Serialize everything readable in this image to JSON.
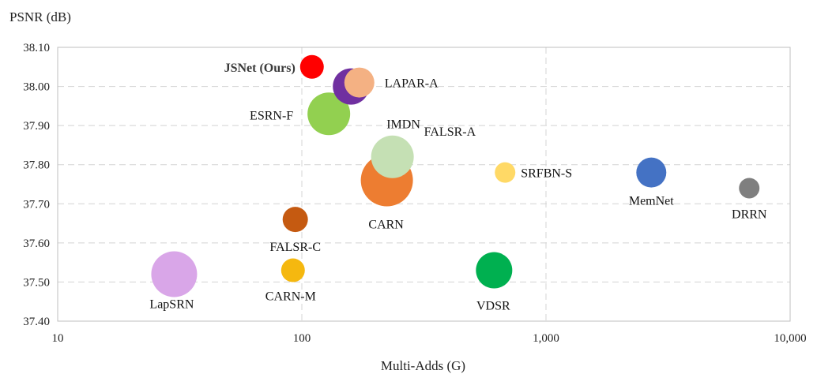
{
  "chart_data": {
    "type": "scatter",
    "title": "",
    "xlabel": "Multi-Adds (G)",
    "ylabel": "PSNR (dB)",
    "x_scale": "log",
    "xlim": [
      10,
      10000
    ],
    "ylim": [
      37.4,
      38.1
    ],
    "x_ticks": [
      10,
      100,
      1000,
      10000
    ],
    "x_tick_labels": [
      "10",
      "100",
      "1,000",
      "10,000"
    ],
    "y_ticks": [
      37.4,
      37.5,
      37.6,
      37.7,
      37.8,
      37.9,
      38.0,
      38.1
    ],
    "y_tick_labels": [
      "37.40",
      "37.50",
      "37.60",
      "37.70",
      "37.80",
      "37.90",
      "38.00",
      "38.10"
    ],
    "grid": true,
    "points": [
      {
        "label": "LapSRN",
        "x": 30,
        "y": 37.52,
        "size": 29,
        "color": "#d9a6e8",
        "bold": false
      },
      {
        "label": "CARN-M",
        "x": 92,
        "y": 37.53,
        "size": 15,
        "color": "#f5b80f",
        "bold": false
      },
      {
        "label": "FALSR-C",
        "x": 94,
        "y": 37.66,
        "size": 16,
        "color": "#c55a11",
        "bold": false
      },
      {
        "label": "JSNet (Ours)",
        "x": 110,
        "y": 38.05,
        "size": 15,
        "color": "#ff0000",
        "bold": true
      },
      {
        "label": "ESRN-F",
        "x": 129,
        "y": 37.93,
        "size": 27,
        "color": "#92d050",
        "bold": false
      },
      {
        "label": "IMDN",
        "x": 159,
        "y": 38.0,
        "size": 23,
        "color": "#7030a0",
        "bold": false
      },
      {
        "label": "LAPAR-A",
        "x": 172,
        "y": 38.01,
        "size": 19,
        "color": "#f4b183",
        "bold": false
      },
      {
        "label": "CARN",
        "x": 223,
        "y": 37.76,
        "size": 33,
        "color": "#ed7d31",
        "bold": false
      },
      {
        "label": "FALSR-A",
        "x": 235,
        "y": 37.82,
        "size": 27,
        "color": "#c5e0b4",
        "bold": false
      },
      {
        "label": "VDSR",
        "x": 613,
        "y": 37.53,
        "size": 23,
        "color": "#00b050",
        "bold": false
      },
      {
        "label": "SRFBN-S",
        "x": 680,
        "y": 37.78,
        "size": 13,
        "color": "#ffd966",
        "bold": false
      },
      {
        "label": "MemNet",
        "x": 2700,
        "y": 37.78,
        "size": 19,
        "color": "#4472c4",
        "bold": false
      },
      {
        "label": "DRRN",
        "x": 6800,
        "y": 37.74,
        "size": 13,
        "color": "#7f7f7f",
        "bold": false
      }
    ]
  }
}
